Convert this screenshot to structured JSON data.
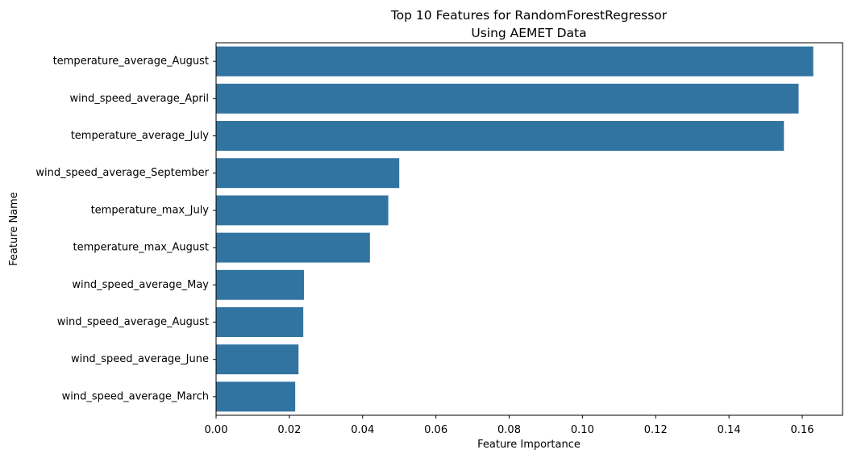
{
  "chart_data": {
    "type": "bar",
    "orientation": "horizontal",
    "title": "Top 10 Features for RandomForestRegressor",
    "subtitle": "Using AEMET Data",
    "xlabel": "Feature Importance",
    "ylabel": "Feature Name",
    "xlim": [
      0,
      0.171
    ],
    "xticks": [
      0.0,
      0.02,
      0.04,
      0.06,
      0.08,
      0.1,
      0.12,
      0.14,
      0.16
    ],
    "xtick_labels": [
      "0.00",
      "0.02",
      "0.04",
      "0.06",
      "0.08",
      "0.10",
      "0.12",
      "0.14",
      "0.16"
    ],
    "grid": false,
    "bar_color": "#3274a1",
    "categories": [
      "temperature_average_August",
      "wind_speed_average_April",
      "temperature_average_July",
      "wind_speed_average_September",
      "temperature_max_July",
      "temperature_max_August",
      "wind_speed_average_May",
      "wind_speed_average_August",
      "wind_speed_average_June",
      "wind_speed_average_March"
    ],
    "values": [
      0.163,
      0.159,
      0.155,
      0.05,
      0.047,
      0.042,
      0.024,
      0.0238,
      0.0225,
      0.0216
    ]
  }
}
